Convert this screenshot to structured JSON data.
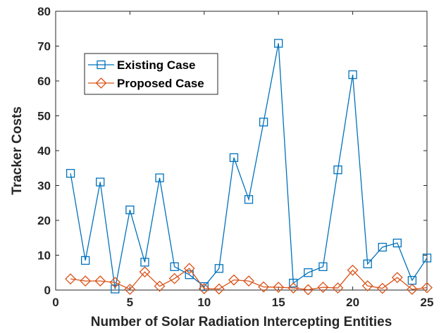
{
  "chart_data": {
    "type": "line",
    "title": "",
    "xlabel": "Number of Solar Radiation Intercepting Entities",
    "ylabel": "Tracker Costs",
    "xlim": [
      0,
      25
    ],
    "ylim": [
      0,
      80
    ],
    "xticks": [
      0,
      5,
      10,
      15,
      20,
      25
    ],
    "yticks": [
      0,
      10,
      20,
      30,
      40,
      50,
      60,
      70,
      80
    ],
    "grid": false,
    "legend_position": "upper-left",
    "x": [
      1,
      2,
      3,
      4,
      5,
      6,
      7,
      8,
      9,
      10,
      11,
      12,
      13,
      14,
      15,
      16,
      17,
      18,
      19,
      20,
      21,
      22,
      23,
      24,
      25
    ],
    "series": [
      {
        "name": "Existing Case",
        "color": "#0072BD",
        "marker": "square",
        "values": [
          33.5,
          8.5,
          31,
          0.3,
          23,
          8,
          32.2,
          6.7,
          4.4,
          1,
          6.2,
          38,
          26,
          48.2,
          70.8,
          2,
          5,
          6.7,
          34.5,
          61.8,
          7.5,
          12.3,
          13.5,
          2.8,
          9.2
        ]
      },
      {
        "name": "Proposed Case",
        "color": "#D95319",
        "marker": "diamond",
        "values": [
          3.2,
          2.6,
          2.6,
          2.2,
          0.2,
          5.2,
          1.1,
          3.3,
          6.2,
          0.4,
          0.3,
          2.9,
          2.6,
          0.9,
          0.8,
          0.6,
          0.1,
          0.8,
          0.6,
          5.7,
          1.2,
          0.5,
          3.6,
          0.2,
          0.7
        ]
      }
    ]
  }
}
